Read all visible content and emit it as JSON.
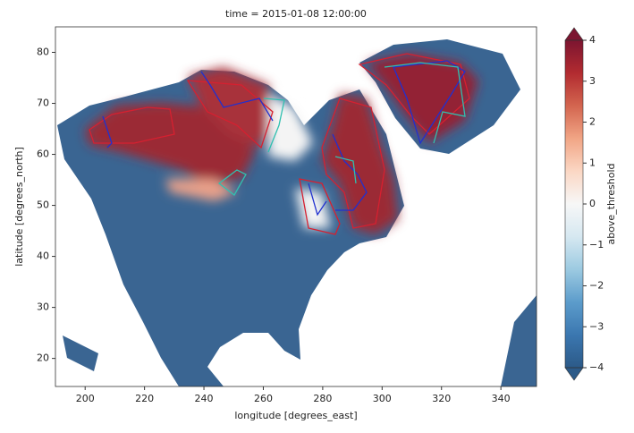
{
  "chart_data": {
    "type": "map",
    "title": "time = 2015-01-08 12:00:00",
    "x_label": "longitude [degrees_east]",
    "y_label": "latitude [degrees_north]",
    "xlim": [
      190,
      352
    ],
    "ylim": [
      14.5,
      85
    ],
    "xticks": [
      200,
      220,
      240,
      260,
      280,
      300,
      320,
      340
    ],
    "yticks": [
      20,
      30,
      40,
      50,
      60,
      70,
      80
    ],
    "colorbar": {
      "label": "above_threshold",
      "vlim": [
        -4,
        4
      ],
      "ticks": [
        {
          "value": -4,
          "label": "−4"
        },
        {
          "value": -3,
          "label": "−3"
        },
        {
          "value": -2,
          "label": "−2"
        },
        {
          "value": -1,
          "label": "−1"
        },
        0,
        1,
        2,
        3,
        4
      ],
      "colormap": [
        "#2c5a88",
        "#3b77b0",
        "#5c9ccb",
        "#9ccae1",
        "#d6e8f1",
        "#f7f7f7",
        "#fbd7c4",
        "#f1a585",
        "#d3654f",
        "#b22b30",
        "#7c1530"
      ]
    }
  }
}
